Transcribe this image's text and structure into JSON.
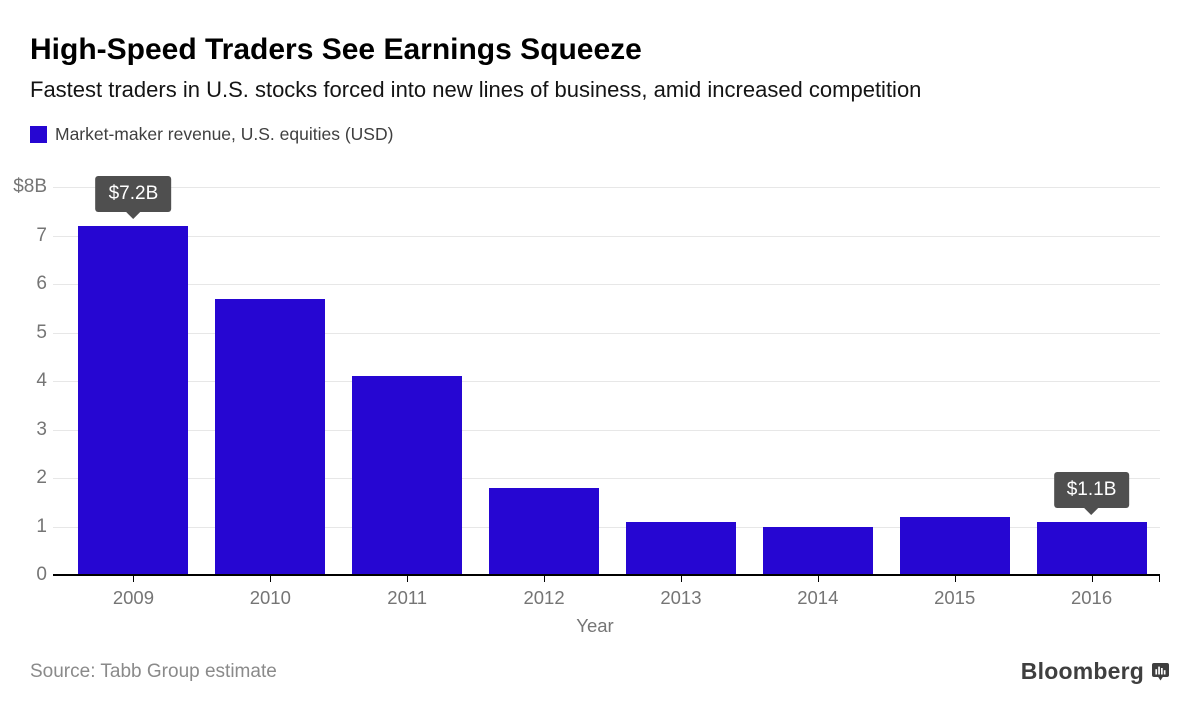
{
  "header": {
    "title": "High-Speed Traders See Earnings Squeeze",
    "subtitle": "Fastest traders in U.S. stocks forced into new lines of business, amid increased competition"
  },
  "legend": {
    "label": "Market-maker revenue, U.S. equities (USD)",
    "swatch_color": "#2606D2"
  },
  "chart_data": {
    "type": "bar",
    "title": "Market-maker revenue, U.S. equities (USD)",
    "categories": [
      "2009",
      "2010",
      "2011",
      "2012",
      "2013",
      "2014",
      "2015",
      "2016"
    ],
    "values": [
      7.2,
      5.7,
      4.1,
      1.8,
      1.1,
      1.0,
      1.2,
      1.1
    ],
    "xlabel": "Year",
    "ylabel": "",
    "ylim": [
      0,
      8
    ],
    "yticks": [
      0,
      1,
      2,
      3,
      4,
      5,
      6,
      7,
      8
    ],
    "ytick_labels": [
      "0",
      "1",
      "2",
      "3",
      "4",
      "5",
      "6",
      "7",
      "$8B"
    ],
    "grid": true,
    "legend_position": "top-left",
    "bar_color": "#2606D2",
    "annotations": [
      {
        "index": 0,
        "category": "2009",
        "value": 7.2,
        "label": "$7.2B"
      },
      {
        "index": 7,
        "category": "2016",
        "value": 1.1,
        "label": "$1.1B"
      }
    ]
  },
  "footer": {
    "source": "Source: Tabb Group estimate",
    "brand": "Bloomberg"
  },
  "colors": {
    "bar": "#2606D2",
    "tooltip_bg": "#4F4F4F",
    "tooltip_text": "#FFFFFF",
    "axis_text": "#757575",
    "gridline": "#E7E7E7",
    "axis_line": "#000000",
    "source_text": "#8A8A8A",
    "brand_text": "#3F3F3F"
  }
}
